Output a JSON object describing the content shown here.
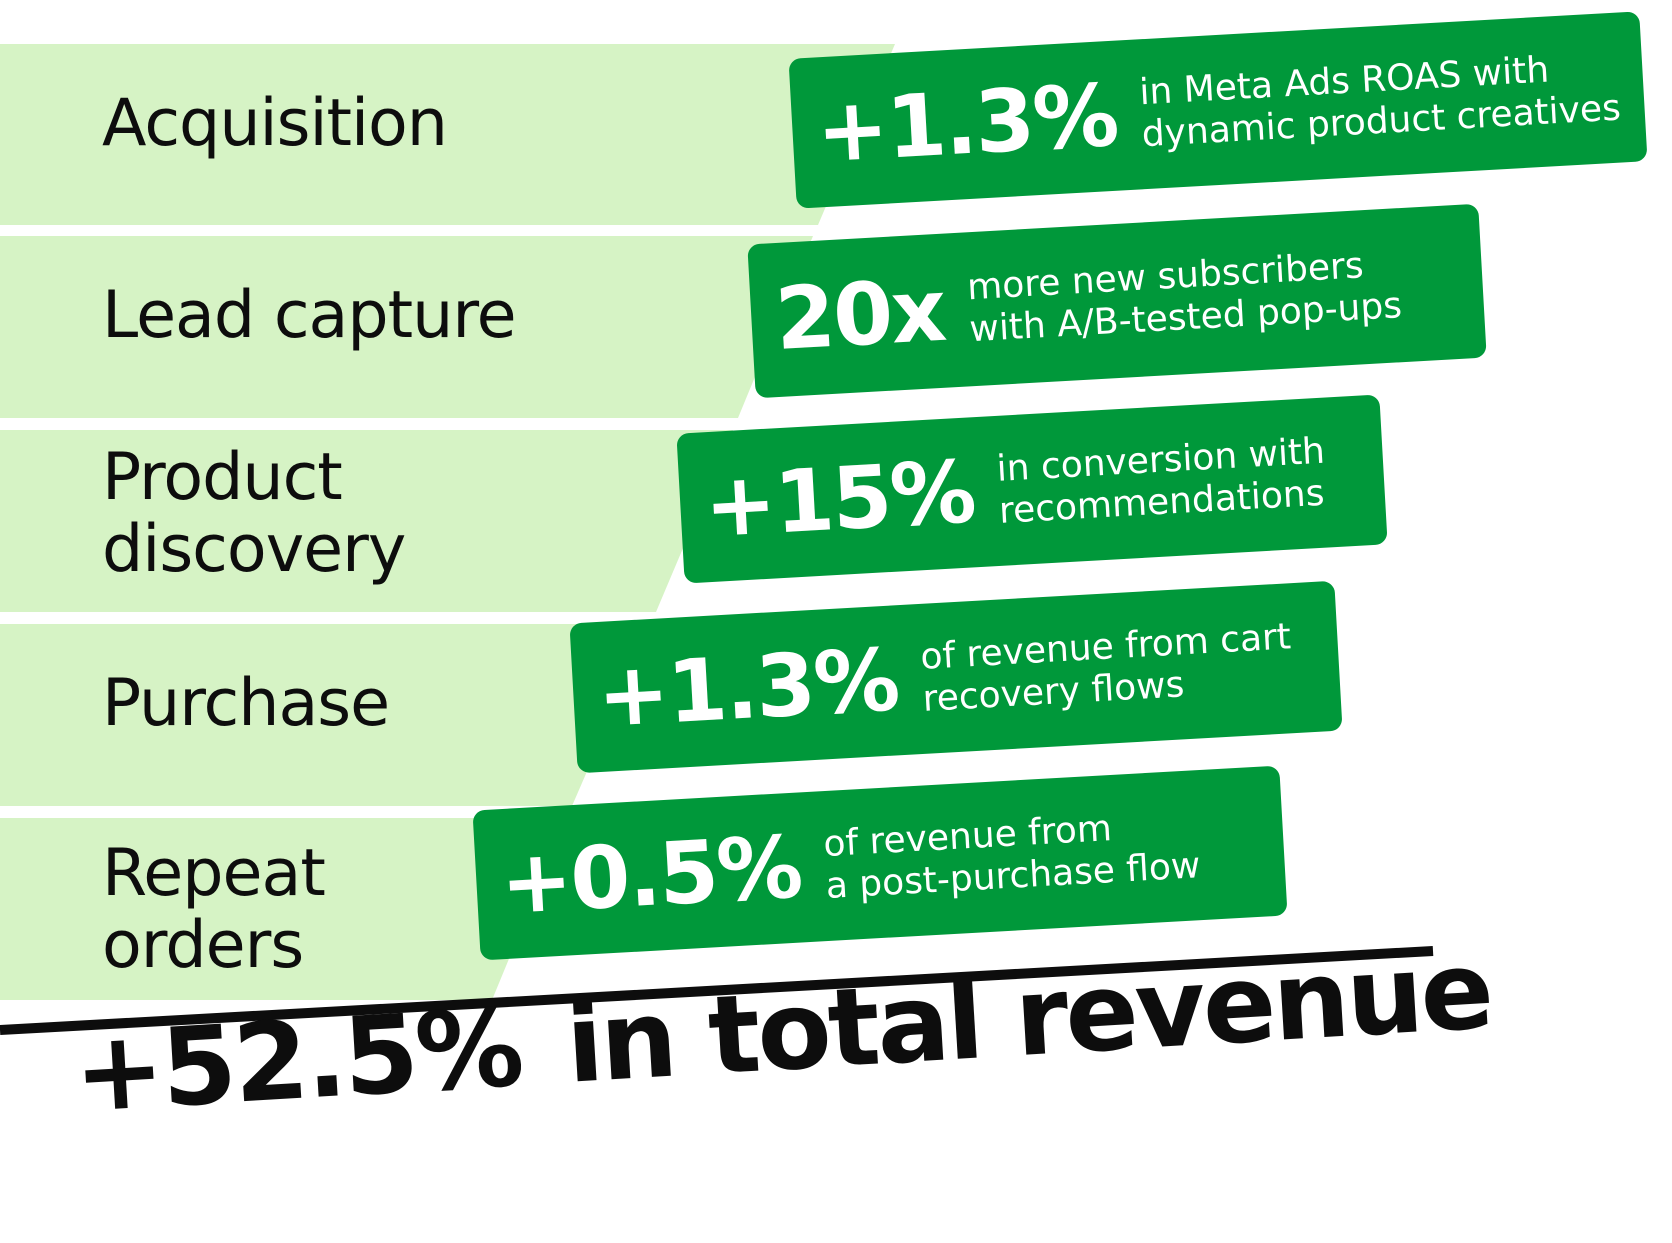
{
  "colors": {
    "stage_fill": "#d6f3c5",
    "badge_fill": "#00983a",
    "badge_text": "#ffffff",
    "text": "#0d0d0d",
    "background": "#ffffff"
  },
  "stages": [
    {
      "label": [
        "Acquisition"
      ],
      "badge_value": "+1.3%",
      "badge_desc": [
        "in Meta Ads ROAS with",
        "dynamic product creatives"
      ]
    },
    {
      "label": [
        "Lead capture"
      ],
      "badge_value": "20x",
      "badge_desc": [
        "more new subscribers",
        "with A/B-tested pop-ups"
      ]
    },
    {
      "label": [
        "Product",
        "discovery"
      ],
      "badge_value": "+15%",
      "badge_desc": [
        "in conversion with",
        "recommendations"
      ]
    },
    {
      "label": [
        "Purchase"
      ],
      "badge_value": "+1.3%",
      "badge_desc": [
        "of revenue from cart",
        "recovery flows"
      ]
    },
    {
      "label": [
        "Repeat",
        "orders"
      ],
      "badge_value": "+0.5%",
      "badge_desc": [
        "of revenue from",
        "a post-purchase flow"
      ]
    }
  ],
  "total": {
    "value": "+52.5%",
    "label": "in total revenue"
  }
}
